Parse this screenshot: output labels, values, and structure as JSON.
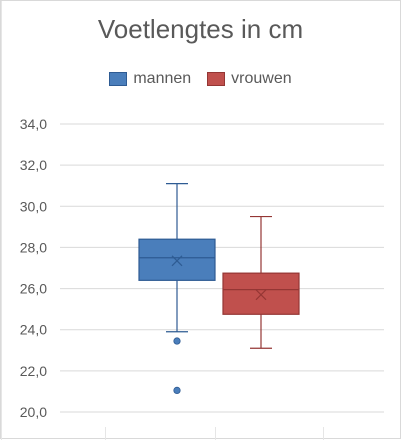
{
  "chart_data": {
    "type": "box",
    "title": "Voetlengtes in cm",
    "xlabel": "",
    "ylabel": "",
    "ylim": [
      20,
      34
    ],
    "y_ticks": [
      "20,0",
      "22,0",
      "24,0",
      "26,0",
      "28,0",
      "30,0",
      "32,0",
      "34,0"
    ],
    "grid": true,
    "legend_position": "top",
    "series": [
      {
        "name": "mannen",
        "color": "#4a7ebb",
        "border": "#2e5b93",
        "whisker_low": 23.9,
        "q1": 26.4,
        "median": 27.5,
        "q3": 28.4,
        "whisker_high": 31.1,
        "mean": 27.35,
        "outliers": [
          23.45,
          21.05
        ]
      },
      {
        "name": "vrouwen",
        "color": "#c0504d",
        "border": "#943634",
        "whisker_low": 23.1,
        "q1": 24.75,
        "median": 25.95,
        "q3": 26.75,
        "whisker_high": 29.5,
        "mean": 25.7,
        "outliers": []
      }
    ]
  }
}
